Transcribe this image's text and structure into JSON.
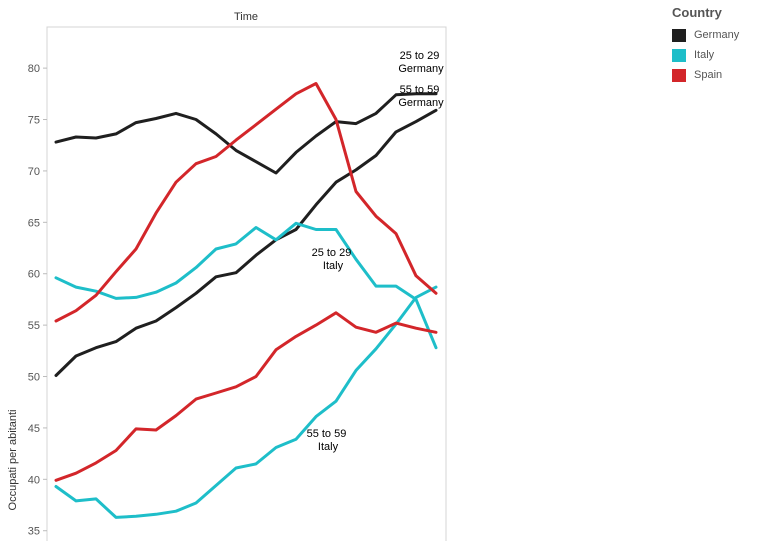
{
  "chart_data": {
    "type": "line",
    "top_header": "Time",
    "ylabel": "Occupati per abitanti",
    "ylim": [
      34,
      84
    ],
    "yticks": [
      35,
      40,
      45,
      50,
      55,
      60,
      65,
      70,
      75,
      80
    ],
    "grid": false,
    "legend": {
      "title": "Country",
      "placement": "top-right",
      "entries": [
        {
          "name": "Germany",
          "color": "#1f1f1f"
        },
        {
          "name": "Italy",
          "color": "#1ebec9"
        },
        {
          "name": "Spain",
          "color": "#d3262a"
        }
      ]
    },
    "series": [
      {
        "country": "Germany",
        "age": "25 to 29",
        "color": "#1f1f1f",
        "values": [
          72.8,
          73.3,
          73.2,
          73.6,
          74.7,
          75.1,
          75.6,
          75.0,
          73.6,
          72.0,
          70.9,
          69.8,
          71.8,
          73.4,
          74.8,
          74.6,
          75.6,
          77.4,
          77.5,
          77.5
        ]
      },
      {
        "country": "Germany",
        "age": "55 to 59",
        "color": "#1f1f1f",
        "values": [
          50.1,
          52.0,
          52.8,
          53.4,
          54.7,
          55.4,
          56.7,
          58.1,
          59.7,
          60.1,
          61.8,
          63.3,
          64.3,
          66.7,
          68.9,
          70.1,
          71.5,
          73.8,
          74.8,
          75.9
        ]
      },
      {
        "country": "Italy",
        "age": "25 to 29",
        "color": "#1ebec9",
        "values": [
          59.6,
          58.7,
          58.3,
          57.6,
          57.7,
          58.2,
          59.1,
          60.6,
          62.4,
          62.9,
          64.5,
          63.3,
          64.9,
          64.3,
          64.3,
          61.4,
          58.8,
          58.8,
          57.5,
          52.8
        ]
      },
      {
        "country": "Italy",
        "age": "55 to 59",
        "color": "#1ebec9",
        "values": [
          39.3,
          37.9,
          38.1,
          36.3,
          36.4,
          36.6,
          36.9,
          37.7,
          39.4,
          41.1,
          41.5,
          43.1,
          43.9,
          46.1,
          47.6,
          50.6,
          52.7,
          55.1,
          57.7,
          58.7
        ]
      },
      {
        "country": "Spain",
        "age": "25 to 29",
        "color": "#d3262a",
        "values": [
          55.4,
          56.4,
          57.9,
          60.2,
          62.4,
          65.9,
          68.9,
          70.7,
          71.4,
          73.0,
          74.5,
          76.0,
          77.5,
          78.5,
          75.0,
          68.0,
          65.6,
          63.9,
          59.8,
          58.1
        ]
      },
      {
        "country": "Spain",
        "age": "55 to 59",
        "color": "#d3262a",
        "values": [
          39.9,
          40.6,
          41.6,
          42.8,
          44.9,
          44.8,
          46.2,
          47.8,
          48.4,
          49.0,
          50.0,
          52.6,
          53.9,
          55.0,
          56.2,
          54.8,
          54.3,
          55.2,
          54.7,
          54.3
        ]
      }
    ],
    "annotations": [
      {
        "lines": [
          "25 to 29",
          "Germany"
        ]
      },
      {
        "lines": [
          "55 to 59",
          "Germany"
        ]
      },
      {
        "lines": [
          "25 to 29",
          "Italy"
        ]
      },
      {
        "lines": [
          "55 to 59",
          "Italy"
        ]
      }
    ]
  }
}
